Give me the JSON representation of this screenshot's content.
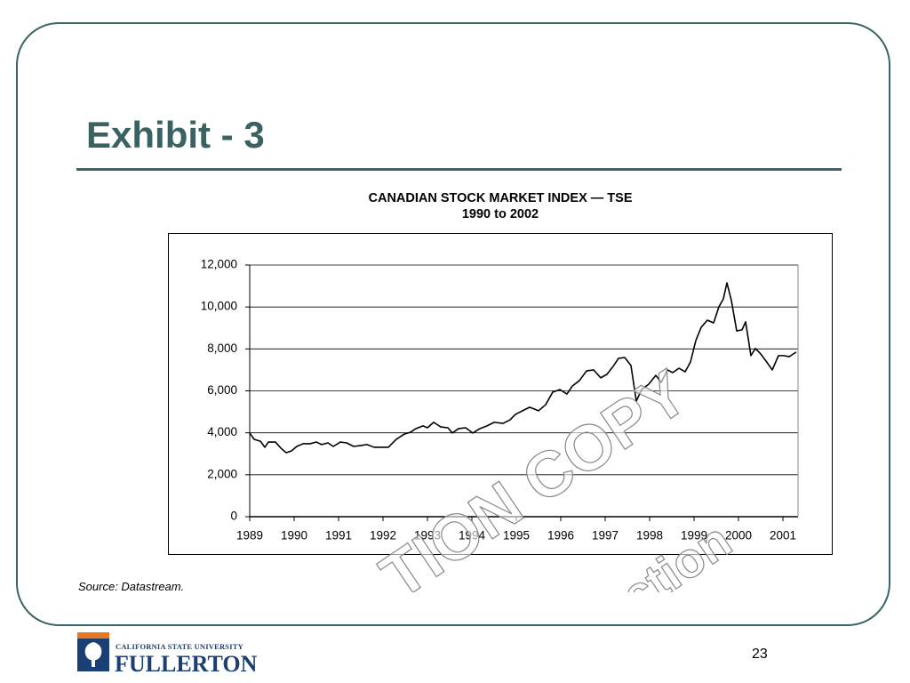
{
  "slide": {
    "title": "Exhibit - 3",
    "source": "Source: Datastream.",
    "page_number": "23",
    "logo": {
      "university": "CALIFORNIA STATE UNIVERSITY",
      "campus": "FULLERTON"
    },
    "watermark": [
      "TION COPY",
      "ction"
    ]
  },
  "chart_data": {
    "type": "line",
    "title": "CANADIAN STOCK MARKET INDEX — TSE",
    "subtitle": "1990 to 2002",
    "color": "#000000",
    "x": [
      1989.0,
      1989.1,
      1989.24,
      1989.34,
      1989.42,
      1989.58,
      1989.7,
      1989.82,
      1989.94,
      1990.06,
      1990.2,
      1990.36,
      1990.5,
      1990.62,
      1990.76,
      1990.88,
      1991.04,
      1991.18,
      1991.34,
      1991.48,
      1991.64,
      1991.8,
      1991.96,
      1992.12,
      1992.3,
      1992.48,
      1992.62,
      1992.74,
      1992.9,
      1993.0,
      1993.14,
      1993.3,
      1993.46,
      1993.56,
      1993.7,
      1993.86,
      1994.02,
      1994.18,
      1994.34,
      1994.5,
      1994.7,
      1994.86,
      1994.98,
      1995.14,
      1995.3,
      1995.5,
      1995.66,
      1995.82,
      1995.98,
      1996.14,
      1996.26,
      1996.42,
      1996.58,
      1996.74,
      1996.9,
      1997.04,
      1997.18,
      1997.3,
      1997.44,
      1997.58,
      1997.7,
      1997.82,
      1997.98,
      1998.14,
      1998.26,
      1998.4,
      1998.52,
      1998.66,
      1998.8,
      1998.92,
      1999.04,
      1999.16,
      1999.3,
      1999.44,
      1999.56,
      1999.66,
      1999.74,
      1999.84,
      1999.96,
      2000.08,
      2000.16,
      2000.28,
      2000.38,
      2000.5,
      2000.62,
      2000.76,
      2000.9,
      2001.02,
      2001.14,
      2001.3
    ],
    "values": [
      3990,
      3690,
      3600,
      3310,
      3560,
      3560,
      3270,
      3050,
      3140,
      3350,
      3480,
      3480,
      3560,
      3440,
      3520,
      3350,
      3560,
      3520,
      3350,
      3390,
      3440,
      3310,
      3310,
      3310,
      3690,
      3940,
      4030,
      4200,
      4330,
      4240,
      4500,
      4280,
      4240,
      3990,
      4200,
      4240,
      3990,
      4200,
      4330,
      4500,
      4450,
      4620,
      4880,
      5050,
      5220,
      5050,
      5340,
      5940,
      6060,
      5850,
      6230,
      6490,
      6950,
      7000,
      6620,
      6790,
      7170,
      7550,
      7590,
      7210,
      5510,
      6060,
      6320,
      6740,
      6400,
      7000,
      6870,
      7080,
      6910,
      7380,
      8400,
      9030,
      9370,
      9240,
      10010,
      10390,
      11150,
      10310,
      8860,
      8910,
      9290,
      7680,
      8020,
      7760,
      7420,
      7000,
      7680,
      7680,
      7630,
      7850
    ],
    "xlim": [
      1989,
      2001.34
    ],
    "xticks": [
      1989,
      1990,
      1991,
      1992,
      1993,
      1994,
      1995,
      1996,
      1997,
      1998,
      1999,
      2000,
      2001
    ],
    "ylim": [
      0,
      12000
    ],
    "yticks": [
      0,
      {
        "value": 2000,
        "label": "2,000"
      },
      {
        "value": 4000,
        "label": "4,000"
      },
      {
        "value": 6000,
        "label": "6,000"
      },
      {
        "value": 8000,
        "label": "8,000"
      },
      {
        "value": 10000,
        "label": "10,000"
      },
      {
        "value": 12000,
        "label": "12,000"
      }
    ],
    "grid": true
  }
}
